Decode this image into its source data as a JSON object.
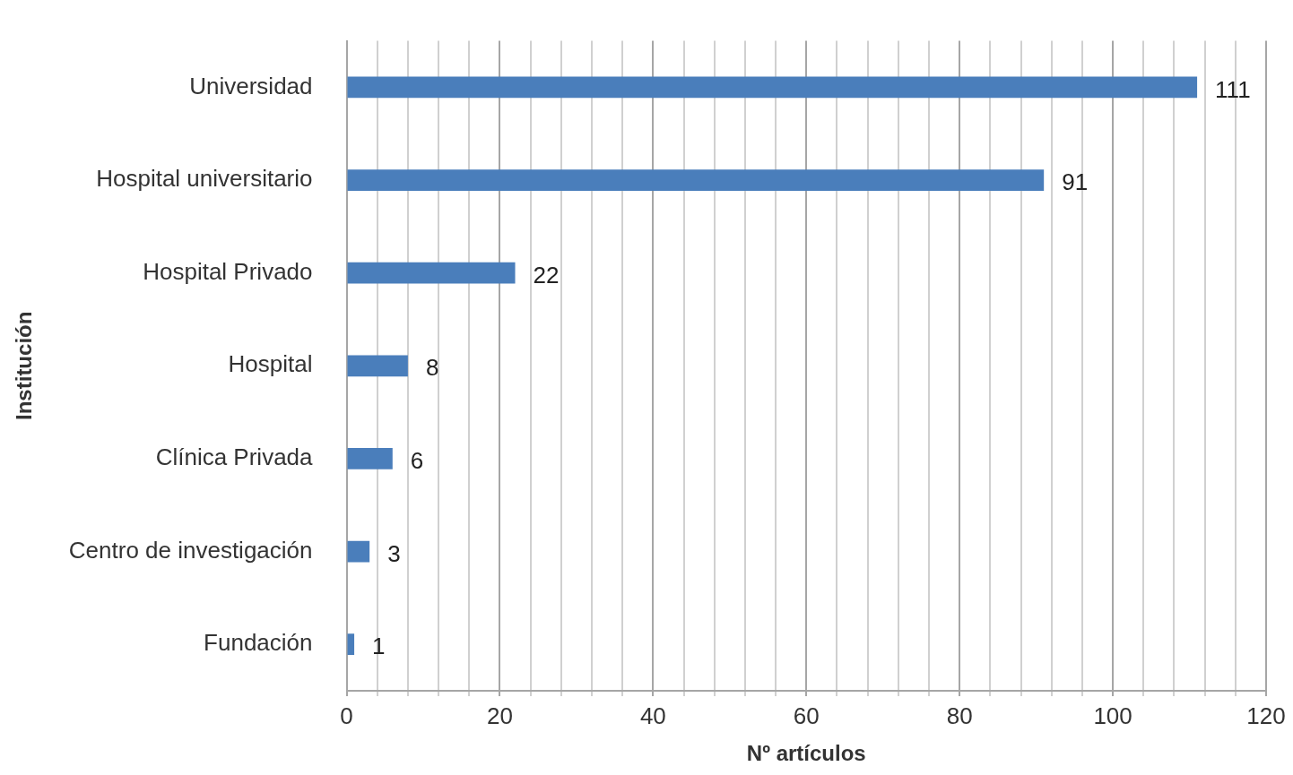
{
  "chart_data": {
    "type": "bar",
    "orientation": "horizontal",
    "xlabel": "Nº artículos",
    "ylabel": "Institución",
    "categories": [
      "Universidad",
      "Hospital universitario",
      "Hospital Privado",
      "Hospital",
      "Clínica Privada",
      "Centro de investigación",
      "Fundación"
    ],
    "values": [
      111,
      91,
      22,
      8,
      6,
      3,
      1
    ],
    "color": "#4a7ebb",
    "data_labels": true,
    "grid": "x",
    "legend": false,
    "xlim": [
      0,
      120
    ],
    "xticks": [
      0,
      {
        "value": 4,
        "label": null
      },
      {
        "value": 8,
        "label": null
      },
      {
        "value": 12,
        "label": null
      },
      {
        "value": 16,
        "label": null
      },
      20,
      {
        "value": 24,
        "label": null
      },
      {
        "value": 28,
        "label": null
      },
      {
        "value": 32,
        "label": null
      },
      {
        "value": 36,
        "label": null
      },
      40,
      {
        "value": 44,
        "label": null
      },
      {
        "value": 48,
        "label": null
      },
      {
        "value": 52,
        "label": null
      },
      {
        "value": 56,
        "label": null
      },
      60,
      {
        "value": 64,
        "label": null
      },
      {
        "value": 68,
        "label": null
      },
      {
        "value": 72,
        "label": null
      },
      {
        "value": 76,
        "label": null
      },
      80,
      {
        "value": 84,
        "label": null
      },
      {
        "value": 88,
        "label": null
      },
      {
        "value": 92,
        "label": null
      },
      {
        "value": 96,
        "label": null
      },
      100,
      {
        "value": 104,
        "label": null
      },
      {
        "value": 108,
        "label": null
      },
      {
        "value": 112,
        "label": null
      },
      {
        "value": 116,
        "label": null
      },
      120
    ]
  }
}
